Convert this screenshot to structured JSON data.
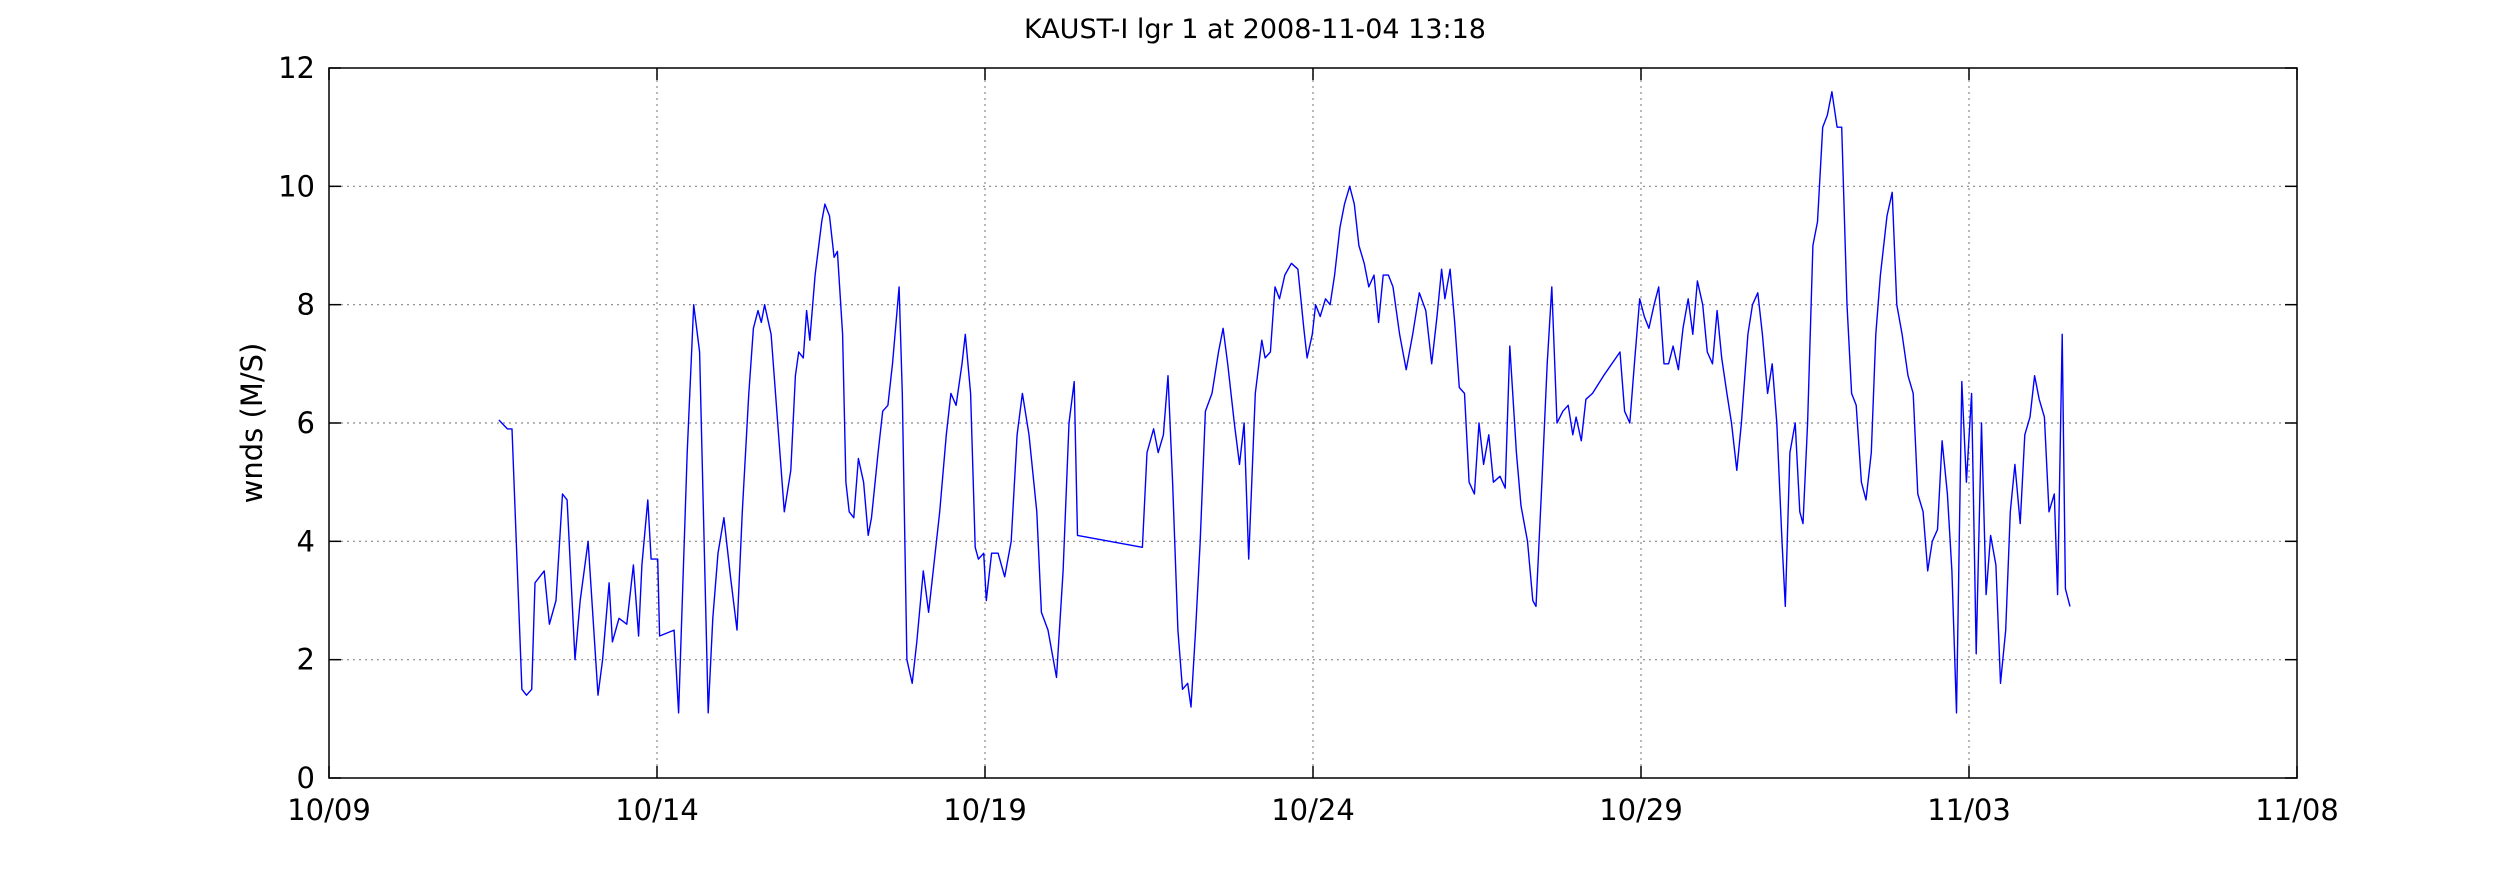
{
  "chart_data": {
    "type": "line",
    "title": "KAUST-I lgr 1 at 2008-11-04 13:18",
    "xlabel": "",
    "ylabel": "wnds (M/S)",
    "x_units": "days since 10/09",
    "xlim": [
      0,
      30
    ],
    "ylim": [
      0,
      12
    ],
    "xticks": [
      0,
      5,
      10,
      15,
      20,
      25,
      30
    ],
    "xtick_labels": [
      "10/09",
      "10/14",
      "10/19",
      "10/24",
      "10/29",
      "11/03",
      "11/08"
    ],
    "yticks": [
      0,
      2,
      4,
      6,
      8,
      10,
      12
    ],
    "ytick_labels": [
      "0",
      "2",
      "4",
      "6",
      "8",
      "10",
      "12"
    ],
    "grid": true,
    "legend": "none",
    "series": [
      {
        "name": "wnds",
        "color": "#0000ff",
        "points": [
          [
            2.59,
            6.05
          ],
          [
            2.72,
            5.9
          ],
          [
            2.79,
            5.9
          ],
          [
            2.94,
            1.5
          ],
          [
            3.01,
            1.4
          ],
          [
            3.09,
            1.5
          ],
          [
            3.14,
            3.3
          ],
          [
            3.28,
            3.5
          ],
          [
            3.36,
            2.6
          ],
          [
            3.46,
            3.0
          ],
          [
            3.56,
            4.8
          ],
          [
            3.63,
            4.7
          ],
          [
            3.75,
            2.0
          ],
          [
            3.83,
            3.0
          ],
          [
            3.95,
            4.0
          ],
          [
            4.1,
            1.4
          ],
          [
            4.17,
            2.0
          ],
          [
            4.27,
            3.3
          ],
          [
            4.32,
            2.3
          ],
          [
            4.42,
            2.7
          ],
          [
            4.54,
            2.6
          ],
          [
            4.64,
            3.6
          ],
          [
            4.72,
            2.4
          ],
          [
            4.77,
            3.6
          ],
          [
            4.86,
            4.7
          ],
          [
            4.91,
            3.7
          ],
          [
            5.01,
            3.7
          ],
          [
            5.04,
            2.4
          ],
          [
            5.26,
            2.5
          ],
          [
            5.33,
            1.1
          ],
          [
            5.46,
            5.5
          ],
          [
            5.56,
            8.0
          ],
          [
            5.65,
            7.2
          ],
          [
            5.78,
            1.1
          ],
          [
            5.85,
            2.7
          ],
          [
            5.93,
            3.8
          ],
          [
            6.02,
            4.4
          ],
          [
            6.12,
            3.4
          ],
          [
            6.22,
            2.5
          ],
          [
            6.3,
            4.5
          ],
          [
            6.4,
            6.5
          ],
          [
            6.47,
            7.6
          ],
          [
            6.54,
            7.9
          ],
          [
            6.59,
            7.7
          ],
          [
            6.64,
            8.0
          ],
          [
            6.74,
            7.5
          ],
          [
            6.84,
            6.0
          ],
          [
            6.94,
            4.5
          ],
          [
            7.04,
            5.2
          ],
          [
            7.11,
            6.8
          ],
          [
            7.16,
            7.2
          ],
          [
            7.23,
            7.1
          ],
          [
            7.28,
            7.9
          ],
          [
            7.33,
            7.4
          ],
          [
            7.41,
            8.5
          ],
          [
            7.51,
            9.4
          ],
          [
            7.56,
            9.7
          ],
          [
            7.63,
            9.5
          ],
          [
            7.7,
            8.8
          ],
          [
            7.75,
            8.9
          ],
          [
            7.83,
            7.5
          ],
          [
            7.88,
            5.0
          ],
          [
            7.93,
            4.5
          ],
          [
            8.0,
            4.4
          ],
          [
            8.07,
            5.4
          ],
          [
            8.15,
            5.0
          ],
          [
            8.22,
            4.1
          ],
          [
            8.27,
            4.4
          ],
          [
            8.37,
            5.5
          ],
          [
            8.44,
            6.2
          ],
          [
            8.52,
            6.3
          ],
          [
            8.59,
            7.0
          ],
          [
            8.69,
            8.3
          ],
          [
            8.74,
            6.5
          ],
          [
            8.81,
            2.0
          ],
          [
            8.89,
            1.6
          ],
          [
            8.96,
            2.3
          ],
          [
            9.06,
            3.5
          ],
          [
            9.14,
            2.8
          ],
          [
            9.21,
            3.5
          ],
          [
            9.31,
            4.5
          ],
          [
            9.41,
            5.8
          ],
          [
            9.48,
            6.5
          ],
          [
            9.56,
            6.3
          ],
          [
            9.65,
            7.0
          ],
          [
            9.7,
            7.5
          ],
          [
            9.78,
            6.5
          ],
          [
            9.85,
            3.9
          ],
          [
            9.9,
            3.7
          ],
          [
            9.98,
            3.8
          ],
          [
            10.02,
            3.0
          ],
          [
            10.1,
            3.8
          ],
          [
            10.2,
            3.8
          ],
          [
            10.3,
            3.4
          ],
          [
            10.4,
            4.0
          ],
          [
            10.49,
            5.8
          ],
          [
            10.57,
            6.5
          ],
          [
            10.67,
            5.8
          ],
          [
            10.79,
            4.5
          ],
          [
            10.86,
            2.8
          ],
          [
            10.96,
            2.5
          ],
          [
            11.09,
            1.7
          ],
          [
            11.19,
            3.5
          ],
          [
            11.28,
            6.0
          ],
          [
            11.36,
            6.7
          ],
          [
            11.41,
            4.1
          ],
          [
            12.4,
            3.9
          ],
          [
            12.47,
            5.5
          ],
          [
            12.57,
            5.9
          ],
          [
            12.64,
            5.5
          ],
          [
            12.72,
            5.8
          ],
          [
            12.79,
            6.8
          ],
          [
            12.86,
            5.0
          ],
          [
            12.94,
            2.5
          ],
          [
            13.01,
            1.5
          ],
          [
            13.09,
            1.6
          ],
          [
            13.14,
            1.2
          ],
          [
            13.21,
            2.5
          ],
          [
            13.28,
            4.0
          ],
          [
            13.36,
            6.2
          ],
          [
            13.46,
            6.5
          ],
          [
            13.56,
            7.2
          ],
          [
            13.63,
            7.6
          ],
          [
            13.7,
            7.0
          ],
          [
            13.8,
            6.0
          ],
          [
            13.88,
            5.3
          ],
          [
            13.95,
            6.0
          ],
          [
            14.02,
            3.7
          ],
          [
            14.12,
            6.5
          ],
          [
            14.22,
            7.4
          ],
          [
            14.27,
            7.1
          ],
          [
            14.35,
            7.2
          ],
          [
            14.42,
            8.3
          ],
          [
            14.49,
            8.1
          ],
          [
            14.57,
            8.5
          ],
          [
            14.67,
            8.7
          ],
          [
            14.77,
            8.6
          ],
          [
            14.86,
            7.6
          ],
          [
            14.91,
            7.1
          ],
          [
            14.99,
            7.5
          ],
          [
            15.04,
            8.0
          ],
          [
            15.11,
            7.8
          ],
          [
            15.19,
            8.1
          ],
          [
            15.26,
            8.0
          ],
          [
            15.33,
            8.5
          ],
          [
            15.41,
            9.3
          ],
          [
            15.48,
            9.7
          ],
          [
            15.56,
            10.0
          ],
          [
            15.63,
            9.7
          ],
          [
            15.7,
            9.0
          ],
          [
            15.78,
            8.7
          ],
          [
            15.85,
            8.3
          ],
          [
            15.93,
            8.5
          ],
          [
            16.0,
            7.7
          ],
          [
            16.07,
            8.5
          ],
          [
            16.15,
            8.5
          ],
          [
            16.22,
            8.3
          ],
          [
            16.32,
            7.5
          ],
          [
            16.42,
            6.9
          ],
          [
            16.52,
            7.5
          ],
          [
            16.62,
            8.2
          ],
          [
            16.72,
            7.9
          ],
          [
            16.81,
            7.0
          ],
          [
            16.89,
            7.8
          ],
          [
            16.96,
            8.6
          ],
          [
            17.01,
            8.1
          ],
          [
            17.09,
            8.6
          ],
          [
            17.16,
            7.7
          ],
          [
            17.23,
            6.6
          ],
          [
            17.31,
            6.5
          ],
          [
            17.38,
            5.0
          ],
          [
            17.46,
            4.8
          ],
          [
            17.53,
            6.0
          ],
          [
            17.6,
            5.3
          ],
          [
            17.68,
            5.8
          ],
          [
            17.75,
            5.0
          ],
          [
            17.85,
            5.1
          ],
          [
            17.93,
            4.9
          ],
          [
            18.0,
            7.3
          ],
          [
            18.1,
            5.5
          ],
          [
            18.17,
            4.6
          ],
          [
            18.27,
            4.0
          ],
          [
            18.35,
            3.0
          ],
          [
            18.4,
            2.9
          ],
          [
            18.49,
            5.0
          ],
          [
            18.57,
            7.0
          ],
          [
            18.64,
            8.3
          ],
          [
            18.72,
            6.0
          ],
          [
            18.81,
            6.2
          ],
          [
            18.89,
            6.3
          ],
          [
            18.96,
            5.8
          ],
          [
            19.01,
            6.1
          ],
          [
            19.09,
            5.7
          ],
          [
            19.16,
            6.4
          ],
          [
            19.26,
            6.5
          ],
          [
            19.43,
            6.8
          ],
          [
            19.68,
            7.2
          ],
          [
            19.75,
            6.2
          ],
          [
            19.83,
            6.0
          ],
          [
            19.9,
            7.0
          ],
          [
            19.98,
            8.1
          ],
          [
            20.05,
            7.8
          ],
          [
            20.12,
            7.6
          ],
          [
            20.2,
            8.0
          ],
          [
            20.27,
            8.3
          ],
          [
            20.35,
            7.0
          ],
          [
            20.42,
            7.0
          ],
          [
            20.49,
            7.3
          ],
          [
            20.57,
            6.9
          ],
          [
            20.64,
            7.6
          ],
          [
            20.72,
            8.1
          ],
          [
            20.79,
            7.5
          ],
          [
            20.86,
            8.4
          ],
          [
            20.94,
            8.0
          ],
          [
            21.01,
            7.2
          ],
          [
            21.09,
            7.0
          ],
          [
            21.16,
            7.9
          ],
          [
            21.23,
            7.1
          ],
          [
            21.31,
            6.5
          ],
          [
            21.38,
            6.0
          ],
          [
            21.46,
            5.2
          ],
          [
            21.53,
            6.0
          ],
          [
            21.63,
            7.5
          ],
          [
            21.7,
            8.0
          ],
          [
            21.78,
            8.2
          ],
          [
            21.85,
            7.5
          ],
          [
            21.93,
            6.5
          ],
          [
            22.0,
            7.0
          ],
          [
            22.07,
            6.0
          ],
          [
            22.15,
            4.0
          ],
          [
            22.2,
            2.9
          ],
          [
            22.27,
            5.5
          ],
          [
            22.35,
            6.0
          ],
          [
            22.42,
            4.5
          ],
          [
            22.47,
            4.3
          ],
          [
            22.54,
            6.0
          ],
          [
            22.62,
            9.0
          ],
          [
            22.69,
            9.4
          ],
          [
            22.77,
            11.0
          ],
          [
            22.84,
            11.2
          ],
          [
            22.91,
            11.6
          ],
          [
            22.99,
            11.0
          ],
          [
            23.06,
            11.0
          ],
          [
            23.14,
            8.0
          ],
          [
            23.21,
            6.5
          ],
          [
            23.28,
            6.3
          ],
          [
            23.36,
            5.0
          ],
          [
            23.43,
            4.7
          ],
          [
            23.51,
            5.5
          ],
          [
            23.58,
            7.5
          ],
          [
            23.65,
            8.5
          ],
          [
            23.75,
            9.5
          ],
          [
            23.83,
            9.9
          ],
          [
            23.9,
            8.0
          ],
          [
            23.98,
            7.5
          ],
          [
            24.07,
            6.8
          ],
          [
            24.15,
            6.5
          ],
          [
            24.22,
            4.8
          ],
          [
            24.3,
            4.5
          ],
          [
            24.37,
            3.5
          ],
          [
            24.44,
            4.0
          ],
          [
            24.52,
            4.2
          ],
          [
            24.59,
            5.7
          ],
          [
            24.67,
            4.8
          ],
          [
            24.74,
            3.5
          ],
          [
            24.81,
            1.1
          ],
          [
            24.89,
            6.7
          ],
          [
            24.96,
            5.0
          ],
          [
            25.04,
            6.5
          ],
          [
            25.11,
            2.1
          ],
          [
            25.19,
            6.0
          ],
          [
            25.26,
            3.1
          ],
          [
            25.33,
            4.1
          ],
          [
            25.41,
            3.6
          ],
          [
            25.48,
            1.6
          ],
          [
            25.56,
            2.5
          ],
          [
            25.63,
            4.5
          ],
          [
            25.7,
            5.3
          ],
          [
            25.78,
            4.3
          ],
          [
            25.85,
            5.8
          ],
          [
            25.93,
            6.1
          ],
          [
            26.0,
            6.8
          ],
          [
            26.07,
            6.4
          ],
          [
            26.15,
            6.1
          ],
          [
            26.22,
            4.5
          ],
          [
            26.3,
            4.8
          ],
          [
            26.35,
            3.1
          ],
          [
            26.42,
            7.5
          ],
          [
            26.47,
            3.2
          ],
          [
            26.54,
            2.9
          ]
        ]
      }
    ]
  }
}
